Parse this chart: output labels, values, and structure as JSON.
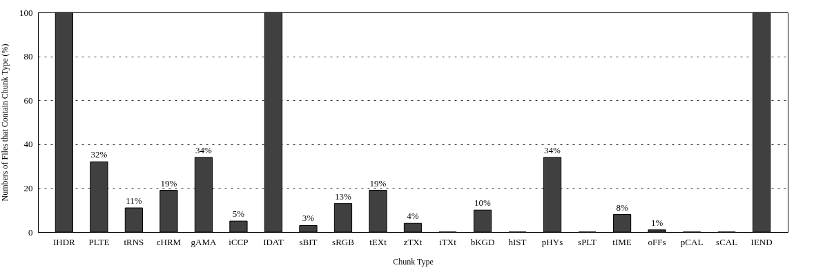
{
  "chart_data": {
    "type": "bar",
    "xlabel": "Chunk Type",
    "ylabel": "Numbers of Files that Contain Chunk Type (%)",
    "categories": [
      "IHDR",
      "PLTE",
      "tRNS",
      "cHRM",
      "gAMA",
      "iCCP",
      "IDAT",
      "sBIT",
      "sRGB",
      "tEXt",
      "zTXt",
      "iTXt",
      "bKGD",
      "hIST",
      "pHYs",
      "sPLT",
      "tIME",
      "oFFs",
      "pCAL",
      "sCAL",
      "IEND"
    ],
    "values": [
      100,
      32,
      11,
      19,
      34,
      5,
      100,
      3,
      13,
      19,
      4,
      0,
      10,
      0,
      34,
      0,
      8,
      1,
      0,
      0,
      100
    ],
    "value_labels": [
      null,
      "32%",
      "11%",
      "19%",
      "34%",
      "5%",
      null,
      "3%",
      "13%",
      "19%",
      "4%",
      null,
      "10%",
      null,
      "34%",
      null,
      "8%",
      "1%",
      null,
      null,
      null
    ],
    "color": "#404040",
    "ylim": [
      0,
      100
    ],
    "yticks": [
      0,
      20,
      40,
      60,
      80,
      100
    ],
    "grid": "y"
  }
}
